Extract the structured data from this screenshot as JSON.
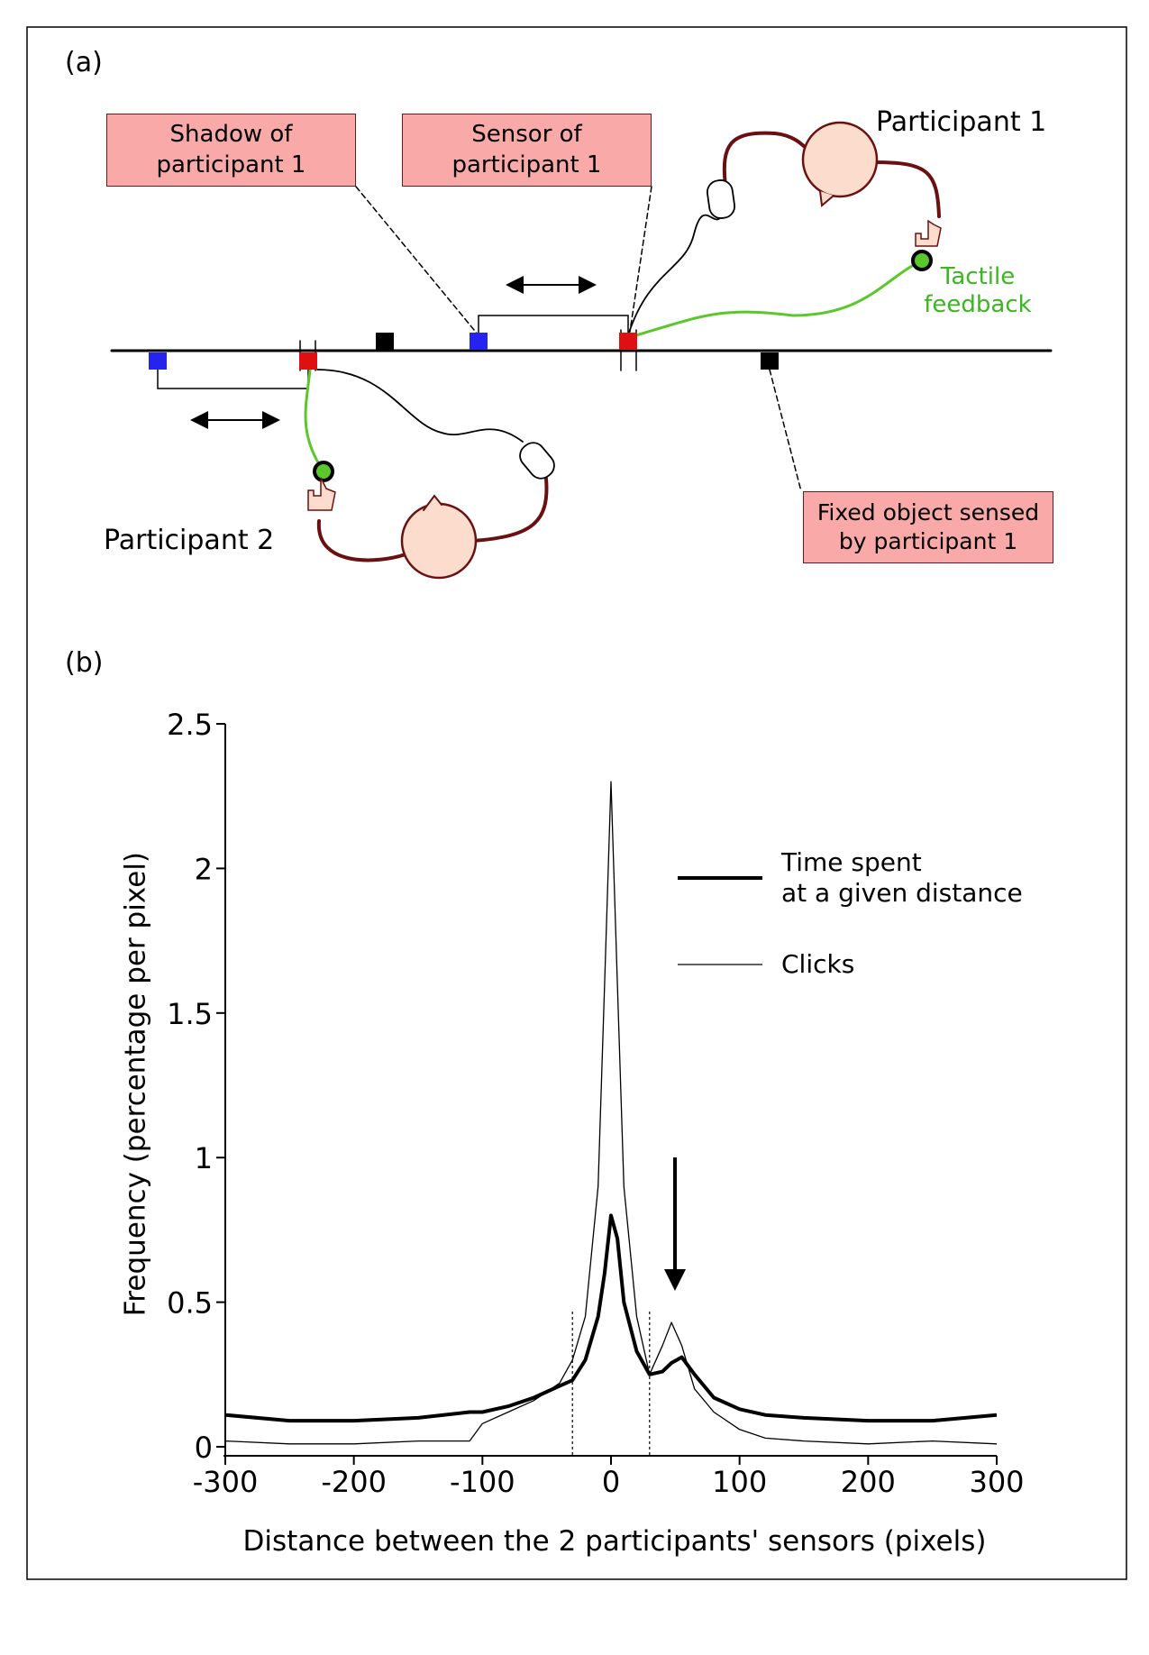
{
  "diagram": {
    "panel_a": "(a)",
    "panel_b": "(b)",
    "box_shadow": "Shadow of\nparticipant 1",
    "box_sensor": "Sensor of\nparticipant 1",
    "box_fixed": "Fixed object sensed\nby participant 1",
    "participant_1": "Participant 1",
    "participant_2": "Participant 2",
    "tactile": "Tactile\nfeedback"
  },
  "chart_data": {
    "type": "line",
    "xlabel": "Distance between the 2 participants' sensors (pixels)",
    "ylabel": "Frequency (percentage per pixel)",
    "x": [
      -300,
      -250,
      -200,
      -150,
      -110,
      -100,
      -80,
      -60,
      -40,
      -30,
      -20,
      -10,
      -5,
      0,
      5,
      10,
      20,
      30,
      40,
      47,
      55,
      65,
      80,
      100,
      120,
      150,
      200,
      250,
      300
    ],
    "series": [
      {
        "name": "Time spent\nat a given distance",
        "color": "#000000",
        "width": 4,
        "values": [
          0.11,
          0.09,
          0.09,
          0.1,
          0.12,
          0.12,
          0.14,
          0.17,
          0.21,
          0.23,
          0.3,
          0.45,
          0.6,
          0.8,
          0.72,
          0.5,
          0.33,
          0.25,
          0.26,
          0.29,
          0.31,
          0.25,
          0.17,
          0.13,
          0.11,
          0.1,
          0.09,
          0.09,
          0.11
        ]
      },
      {
        "name": "Clicks",
        "color": "#000000",
        "width": 1.3,
        "values": [
          0.02,
          0.01,
          0.01,
          0.02,
          0.02,
          0.08,
          0.12,
          0.16,
          0.22,
          0.3,
          0.45,
          0.9,
          1.6,
          2.3,
          1.6,
          0.9,
          0.45,
          0.25,
          0.35,
          0.43,
          0.35,
          0.2,
          0.12,
          0.06,
          0.03,
          0.02,
          0.01,
          0.02,
          0.01
        ]
      }
    ],
    "vlines": [
      -30,
      30
    ],
    "xlim": [
      -300,
      300
    ],
    "xticks": [
      -300,
      -200,
      -100,
      0,
      100,
      200,
      300
    ],
    "ylim": [
      0,
      2.5
    ],
    "yticks": [
      0,
      0.5,
      1,
      1.5,
      2,
      2.5
    ]
  }
}
